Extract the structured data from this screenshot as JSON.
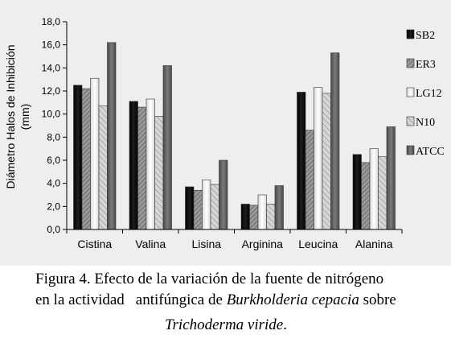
{
  "chart_data": {
    "type": "bar",
    "ylabel_line1": "Diámetro Halos de Inhibición",
    "ylabel_line2": "(mm)",
    "xlabel": "",
    "title": "",
    "ylim": [
      0,
      18
    ],
    "ytick_step": 2,
    "ytick_labels": [
      "0,0",
      "2,0",
      "4,0",
      "6,0",
      "8,0",
      "10,0",
      "12,0",
      "14,0",
      "16,0",
      "18,0"
    ],
    "categories": [
      "Cistina",
      "Valina",
      "Lisina",
      "Arginina",
      "Leucina",
      "Alanina"
    ],
    "series": [
      {
        "name": "SB2",
        "values": [
          12.5,
          11.1,
          3.7,
          2.2,
          11.9,
          6.5
        ],
        "color": "#0a0a0a",
        "pattern": "solid"
      },
      {
        "name": "ER3",
        "values": [
          12.2,
          10.6,
          3.4,
          2.1,
          8.6,
          5.8
        ],
        "color": "#8c8c8c",
        "pattern": "stripes"
      },
      {
        "name": "LG12",
        "values": [
          13.1,
          11.3,
          4.3,
          3.0,
          12.3,
          7.0
        ],
        "color": "#f4f4f4",
        "pattern": "light"
      },
      {
        "name": "N10",
        "values": [
          10.7,
          9.8,
          3.9,
          2.2,
          11.8,
          6.3
        ],
        "color": "#bdbdbd",
        "pattern": "stripes-light"
      },
      {
        "name": "ATCC",
        "values": [
          16.2,
          14.2,
          6.0,
          3.8,
          15.3,
          8.9
        ],
        "color": "#5e5e5e",
        "pattern": "solid"
      }
    ],
    "legend_position": "right",
    "grid": false
  },
  "caption": {
    "line1": "Figura 4. Efecto de la variación de la fuente de nitrógeno",
    "line2_a": "en la actividad",
    "line2_b": "antifúngica de ",
    "line2_italic": "Burkholderia cepacia",
    "line2_c": " sobre",
    "line3_italic": "Trichoderma viride",
    "line3_end": "."
  }
}
